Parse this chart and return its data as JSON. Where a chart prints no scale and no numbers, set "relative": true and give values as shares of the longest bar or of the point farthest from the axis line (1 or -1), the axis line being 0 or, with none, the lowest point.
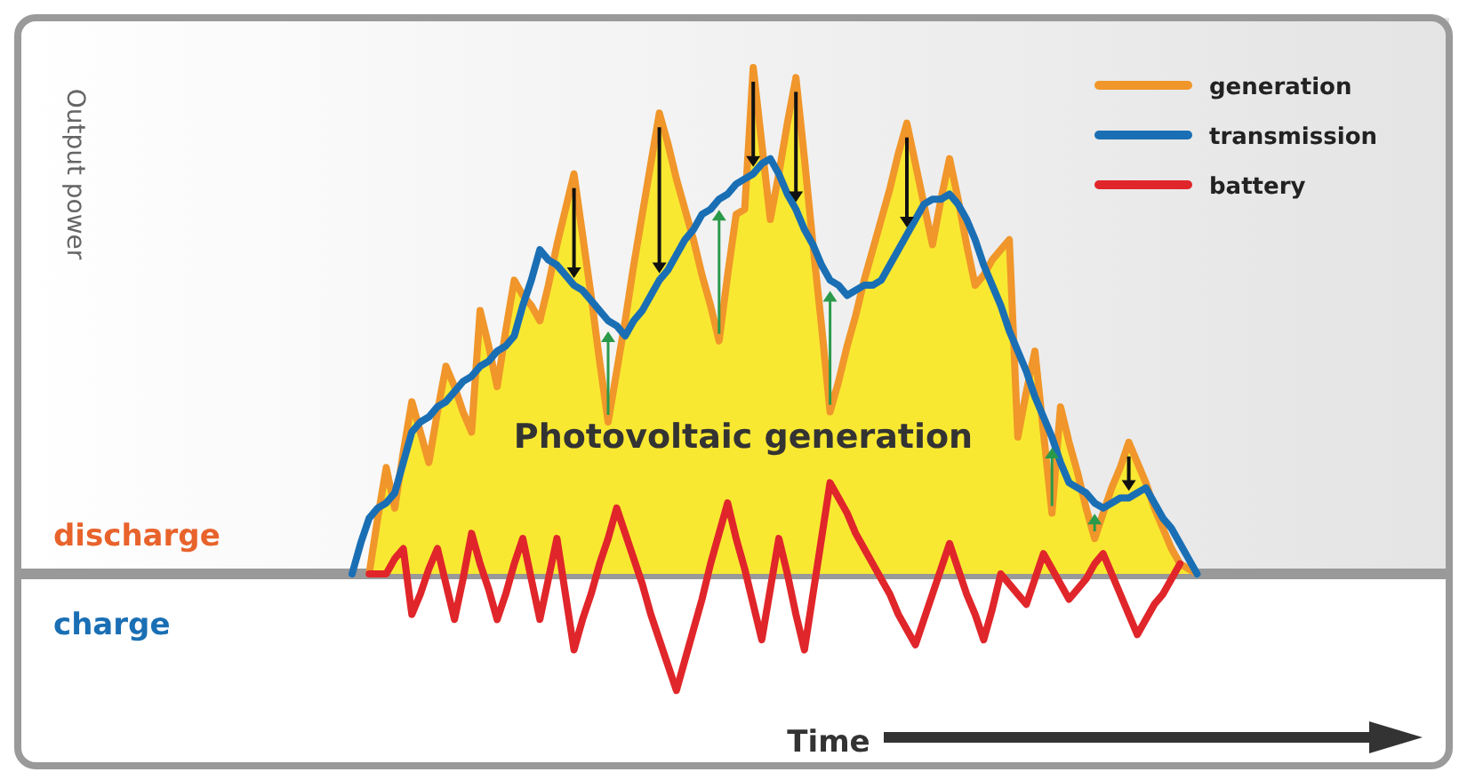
{
  "chart_data": {
    "type": "line",
    "relative": true,
    "xlabel": "Time",
    "legend": "top right",
    "grid": false,
    "annotations": [
      "Photovoltaic generation",
      "discharge",
      "charge",
      "Output power"
    ],
    "categories": [
      null,
      null,
      null,
      null,
      null,
      null,
      null,
      null,
      null,
      null,
      null,
      null,
      null,
      null,
      null,
      null,
      null,
      null,
      null,
      null,
      null,
      null,
      null,
      null,
      null,
      null,
      null,
      null,
      null,
      null,
      null,
      null,
      null,
      null,
      null,
      null,
      null,
      null,
      null,
      null,
      null,
      null,
      null,
      null,
      null,
      null,
      null,
      null,
      null,
      null,
      null,
      null,
      null,
      null,
      null,
      null,
      null,
      null,
      null,
      null,
      null,
      null,
      null,
      null,
      null,
      null,
      null,
      null,
      null,
      null,
      null,
      null,
      null,
      null,
      null,
      null,
      null,
      null,
      null,
      null,
      null,
      null,
      null,
      null,
      null,
      null,
      null,
      null,
      null,
      null,
      null,
      null,
      null,
      null,
      null,
      null,
      null,
      null,
      null,
      null,
      null
    ],
    "series": [
      {
        "name": "generation",
        "type": "area",
        "color": "#f0962a",
        "values": [
          null,
          null,
          0,
          0.11,
          0.21,
          0.13,
          0.24,
          0.34,
          0.28,
          0.22,
          0.32,
          0.41,
          0.37,
          0.32,
          0.28,
          0.52,
          0.45,
          0.37,
          0.48,
          0.58,
          0.55,
          0.53,
          0.5,
          0.57,
          0.65,
          0.72,
          0.79,
          0.67,
          0.55,
          0.42,
          0.3,
          0.4,
          0.5,
          0.61,
          0.71,
          0.81,
          0.91,
          0.85,
          0.78,
          0.72,
          0.66,
          0.59,
          0.53,
          0.46,
          0.59,
          0.71,
          0.72,
          1.0,
          0.85,
          0.7,
          0.79,
          0.89,
          0.98,
          0.82,
          0.65,
          0.49,
          0.32,
          0.38,
          0.45,
          0.51,
          0.58,
          0.64,
          0.7,
          0.76,
          0.83,
          0.89,
          0.81,
          0.73,
          0.65,
          0.74,
          0.82,
          0.74,
          0.65,
          0.57,
          0.59,
          0.62,
          0.64,
          0.66,
          0.27,
          0.36,
          0.44,
          0.28,
          0.12,
          0.33,
          0.26,
          0.2,
          0.13,
          0.07,
          0.12,
          0.17,
          0.21,
          0.26,
          0.22,
          0.18,
          0.13,
          0.09,
          0.05,
          0.02,
          0.01,
          0,
          null
        ]
      },
      {
        "name": "transmission",
        "type": "line",
        "color": "#1a6fb4",
        "values": [
          0,
          0.06,
          0.11,
          0.13,
          0.14,
          0.16,
          0.22,
          0.28,
          0.3,
          0.31,
          0.33,
          0.34,
          0.36,
          0.38,
          0.39,
          0.41,
          0.42,
          0.44,
          0.45,
          0.47,
          0.53,
          0.58,
          0.64,
          0.62,
          0.61,
          0.59,
          0.57,
          0.56,
          0.54,
          0.52,
          0.5,
          0.49,
          0.47,
          0.5,
          0.52,
          0.55,
          0.58,
          0.6,
          0.63,
          0.66,
          0.68,
          0.71,
          0.72,
          0.74,
          0.75,
          0.77,
          0.78,
          0.79,
          0.81,
          0.82,
          0.79,
          0.75,
          0.72,
          0.68,
          0.65,
          0.61,
          0.58,
          0.57,
          0.55,
          0.56,
          0.57,
          0.57,
          0.58,
          0.61,
          0.64,
          0.67,
          0.7,
          0.73,
          0.74,
          0.74,
          0.75,
          0.73,
          0.7,
          0.66,
          0.61,
          0.57,
          0.53,
          0.48,
          0.44,
          0.4,
          0.35,
          0.31,
          0.27,
          0.22,
          0.18,
          0.17,
          0.16,
          0.14,
          0.13,
          0.14,
          0.15,
          0.15,
          0.16,
          0.17,
          0.14,
          0.11,
          0.09,
          0.06,
          0.03,
          0,
          null
        ]
      },
      {
        "name": "battery",
        "type": "line",
        "color": "#e0262a",
        "values": [
          null,
          null,
          0,
          0,
          0,
          0.03,
          0.05,
          -0.08,
          -0.04,
          0.01,
          0.05,
          -0.02,
          -0.09,
          -0.01,
          0.08,
          0.02,
          -0.03,
          -0.09,
          -0.04,
          0.02,
          0.07,
          -0.01,
          -0.09,
          -0.01,
          0.07,
          -0.04,
          -0.15,
          -0.09,
          -0.04,
          0.02,
          0.07,
          0.13,
          0.08,
          0.03,
          -0.02,
          -0.08,
          -0.13,
          -0.18,
          -0.23,
          -0.17,
          -0.11,
          -0.05,
          0.02,
          0.08,
          0.14,
          0.07,
          0.01,
          -0.06,
          -0.13,
          -0.03,
          0.07,
          0,
          -0.08,
          -0.15,
          -0.04,
          0.07,
          0.18,
          0.15,
          0.12,
          0.08,
          0.05,
          0.02,
          -0.01,
          -0.04,
          -0.08,
          -0.11,
          -0.14,
          -0.09,
          -0.04,
          0.01,
          0.06,
          0.01,
          -0.04,
          -0.08,
          -0.13,
          -0.07,
          0,
          -0.02,
          -0.04,
          -0.06,
          -0.01,
          0.04,
          0.01,
          -0.02,
          -0.05,
          -0.03,
          -0.01,
          0.02,
          0.04,
          0,
          -0.04,
          -0.08,
          -0.12,
          -0.09,
          -0.06,
          -0.04,
          -0.01,
          0.02,
          null,
          null,
          null
        ]
      }
    ]
  }
}
